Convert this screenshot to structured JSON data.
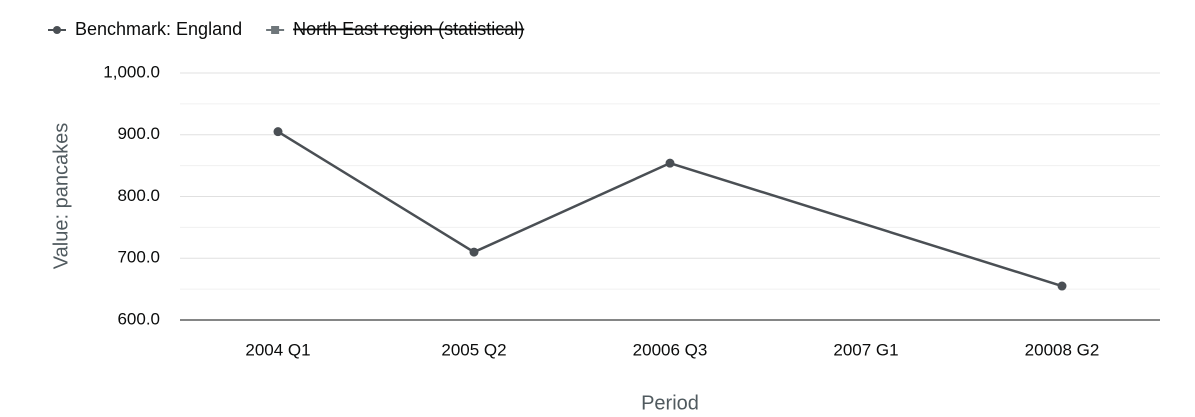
{
  "chart_data": {
    "type": "line",
    "y_label": "Value: pancakes",
    "x_label": "Period",
    "categories": [
      "2004 Q1",
      "2005 Q2",
      "20006 Q3",
      "2007 G1",
      "20008 G2"
    ],
    "series": [
      {
        "name": "Benchmark: England",
        "color": "#4a4f54",
        "marker": "circle",
        "hidden": false,
        "values": [
          905,
          710,
          854,
          null,
          655
        ]
      },
      {
        "name": "North East region (statistical)",
        "color": "#6f777b",
        "marker": "square",
        "hidden": true,
        "values": [
          null,
          null,
          null,
          null,
          null
        ]
      }
    ],
    "connect_nulls": true,
    "ylim": [
      600,
      1000
    ],
    "yticks": [
      {
        "value": 600,
        "label": "600.0"
      },
      {
        "value": 700,
        "label": "700.0"
      },
      {
        "value": 800,
        "label": "800.0"
      },
      {
        "value": 900,
        "label": "900.0"
      },
      {
        "value": 1000,
        "label": "1,000.0"
      }
    ],
    "y_minor_gridlines": [
      650,
      750,
      850,
      950
    ],
    "grid": true,
    "legend_position": "top-left"
  }
}
